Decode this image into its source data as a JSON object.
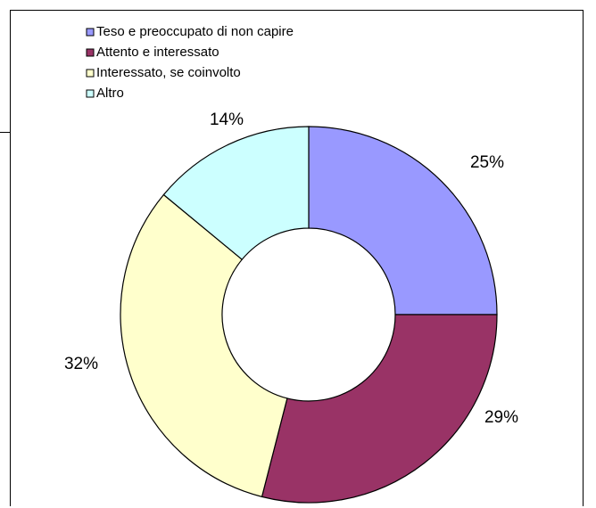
{
  "chart_data": {
    "type": "pie",
    "style": "donut",
    "title": "",
    "categories": [
      "Teso e preoccupato di non capire",
      "Attento e interessato",
      "Interessato, se coinvolto",
      "Altro"
    ],
    "values": [
      25,
      29,
      32,
      14
    ],
    "labels": [
      "25%",
      "29%",
      "32%",
      "14%"
    ],
    "colors": [
      "#9999ff",
      "#993366",
      "#ffffcc",
      "#ccffff"
    ],
    "legend": "top-left"
  }
}
